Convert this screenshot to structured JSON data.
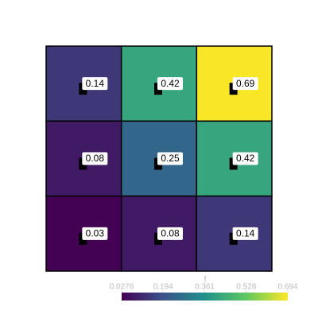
{
  "chart_data": {
    "type": "heatmap",
    "values": [
      [
        0.14,
        0.42,
        0.69
      ],
      [
        0.08,
        0.25,
        0.42
      ],
      [
        0.03,
        0.08,
        0.14
      ]
    ],
    "colorscale": "viridis",
    "colorbar_title": "f",
    "zlim": [
      0.0278,
      0.694
    ],
    "zticks": [
      0.0278,
      0.194,
      0.361,
      0.528,
      0.694
    ]
  }
}
